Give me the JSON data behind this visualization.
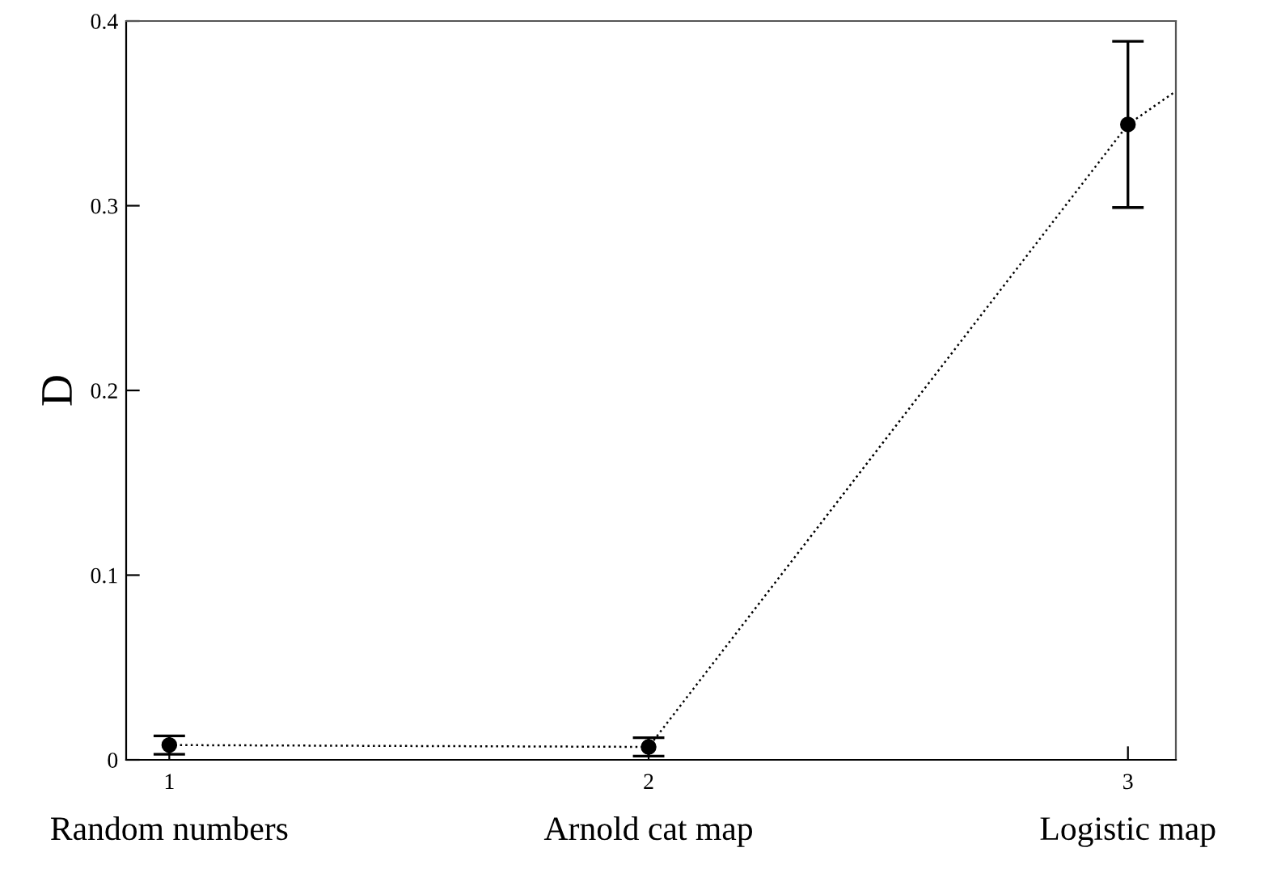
{
  "chart_data": {
    "type": "scatter",
    "ylabel": "D",
    "x": [
      1,
      2,
      3
    ],
    "series": [
      {
        "color": "#000000",
        "values": [
          0.008,
          0.007,
          0.344
        ],
        "errors": [
          0.005,
          0.005,
          0.045
        ],
        "marker": "circle"
      },
      {
        "type": "line",
        "color": "#000000",
        "x": [
          1,
          2,
          3,
          3.1
        ],
        "values": [
          0.008,
          0.007,
          0.344,
          0.362
        ],
        "line_style": "dotted",
        "marker": "none"
      }
    ],
    "xlim": [
      0.91,
      3.1
    ],
    "xticks": [
      1,
      2,
      3
    ],
    "ylim": [
      0,
      0.4
    ],
    "yticks": [
      0,
      0.1,
      0.2,
      0.3,
      0.4
    ],
    "grid": false,
    "legend": false,
    "annotations": [
      "Random numbers",
      "Arnold cat map",
      "Logistic map"
    ]
  }
}
